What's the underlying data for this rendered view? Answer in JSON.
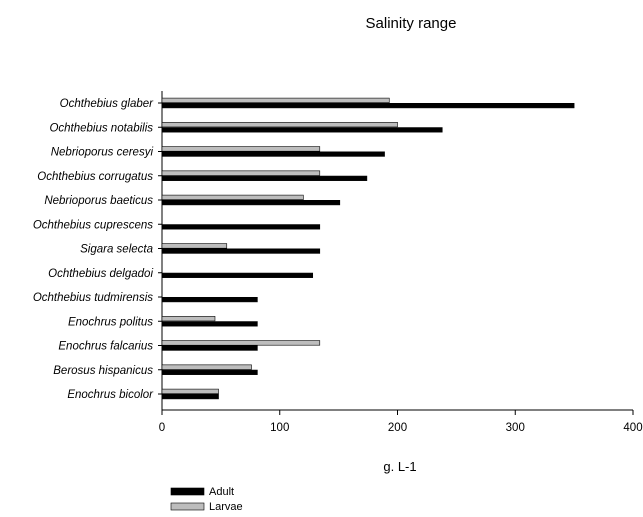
{
  "chart_data": {
    "type": "bar",
    "orientation": "horizontal",
    "title": "Salinity range",
    "xlabel": "g. L-1",
    "ylabel": "",
    "xlim": [
      0,
      400
    ],
    "xticks": [
      "0",
      "100",
      "200",
      "300",
      "400"
    ],
    "grid": false,
    "legend_position": "bottom-left",
    "categories": [
      "Ochthebius glaber",
      "Ochthebius notabilis",
      "Nebrioporus ceresyi",
      "Ochthebius corrugatus",
      "Nebrioporus baeticus",
      "Ochthebius cuprescens",
      "Sigara selecta",
      "Ochthebius delgadoi",
      "Ochthebius tudmirensis",
      "Enochrus politus",
      "Enochrus falcarius",
      "Berosus hispanicus",
      "Enochrus bicolor"
    ],
    "series": [
      {
        "name": "Adult",
        "color": "#000000",
        "values": [
          350,
          238,
          189,
          174,
          151,
          134,
          134,
          128,
          81,
          81,
          81,
          81,
          48
        ]
      },
      {
        "name": "Larvae",
        "color": "#bdbdbd",
        "values": [
          193,
          200,
          134,
          134,
          120,
          null,
          55,
          null,
          null,
          45,
          134,
          76,
          48
        ]
      }
    ]
  }
}
